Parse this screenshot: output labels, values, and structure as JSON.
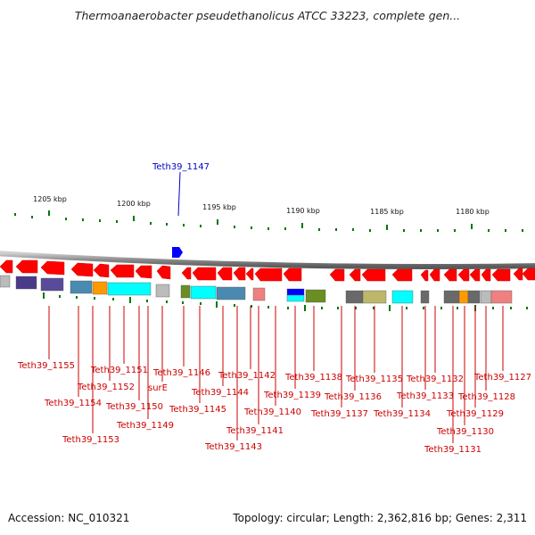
{
  "header": {
    "title": "Thermoanaerobacter pseudethanolicus ATCC 33223, complete gen..."
  },
  "footer": {
    "accession": "Accession: NC_010321",
    "topology": "Topology: circular; Length: 2,362,816 bp; Genes: 2,311"
  },
  "highlight": {
    "label": "Teth39_1147"
  },
  "scale": {
    "ticks": [
      "1205 kbp",
      "1200 kbp",
      "1195 kbp",
      "1190 kbp",
      "1185 kbp",
      "1180 kbp"
    ]
  },
  "genes": [
    "Teth39_1155",
    "Teth39_1154",
    "Teth39_1153",
    "Teth39_1152",
    "Teth39_1151",
    "Teth39_1150",
    "Teth39_1149",
    "surE",
    "Teth39_1146",
    "Teth39_1145",
    "Teth39_1144",
    "Teth39_1143",
    "Teth39_1142",
    "Teth39_1141",
    "Teth39_1140",
    "Teth39_1139",
    "Teth39_1138",
    "Teth39_1137",
    "Teth39_1136",
    "Teth39_1135",
    "Teth39_1134",
    "Teth39_1133",
    "Teth39_1132",
    "Teth39_1131",
    "Teth39_1130",
    "Teth39_1129",
    "Teth39_1128",
    "Teth39_1127"
  ],
  "colors": {
    "gene_arrow": "#ff0000",
    "label": "#cc0000",
    "highlight": "#0000cc",
    "tick": "#007700",
    "backbone": "#888888"
  }
}
